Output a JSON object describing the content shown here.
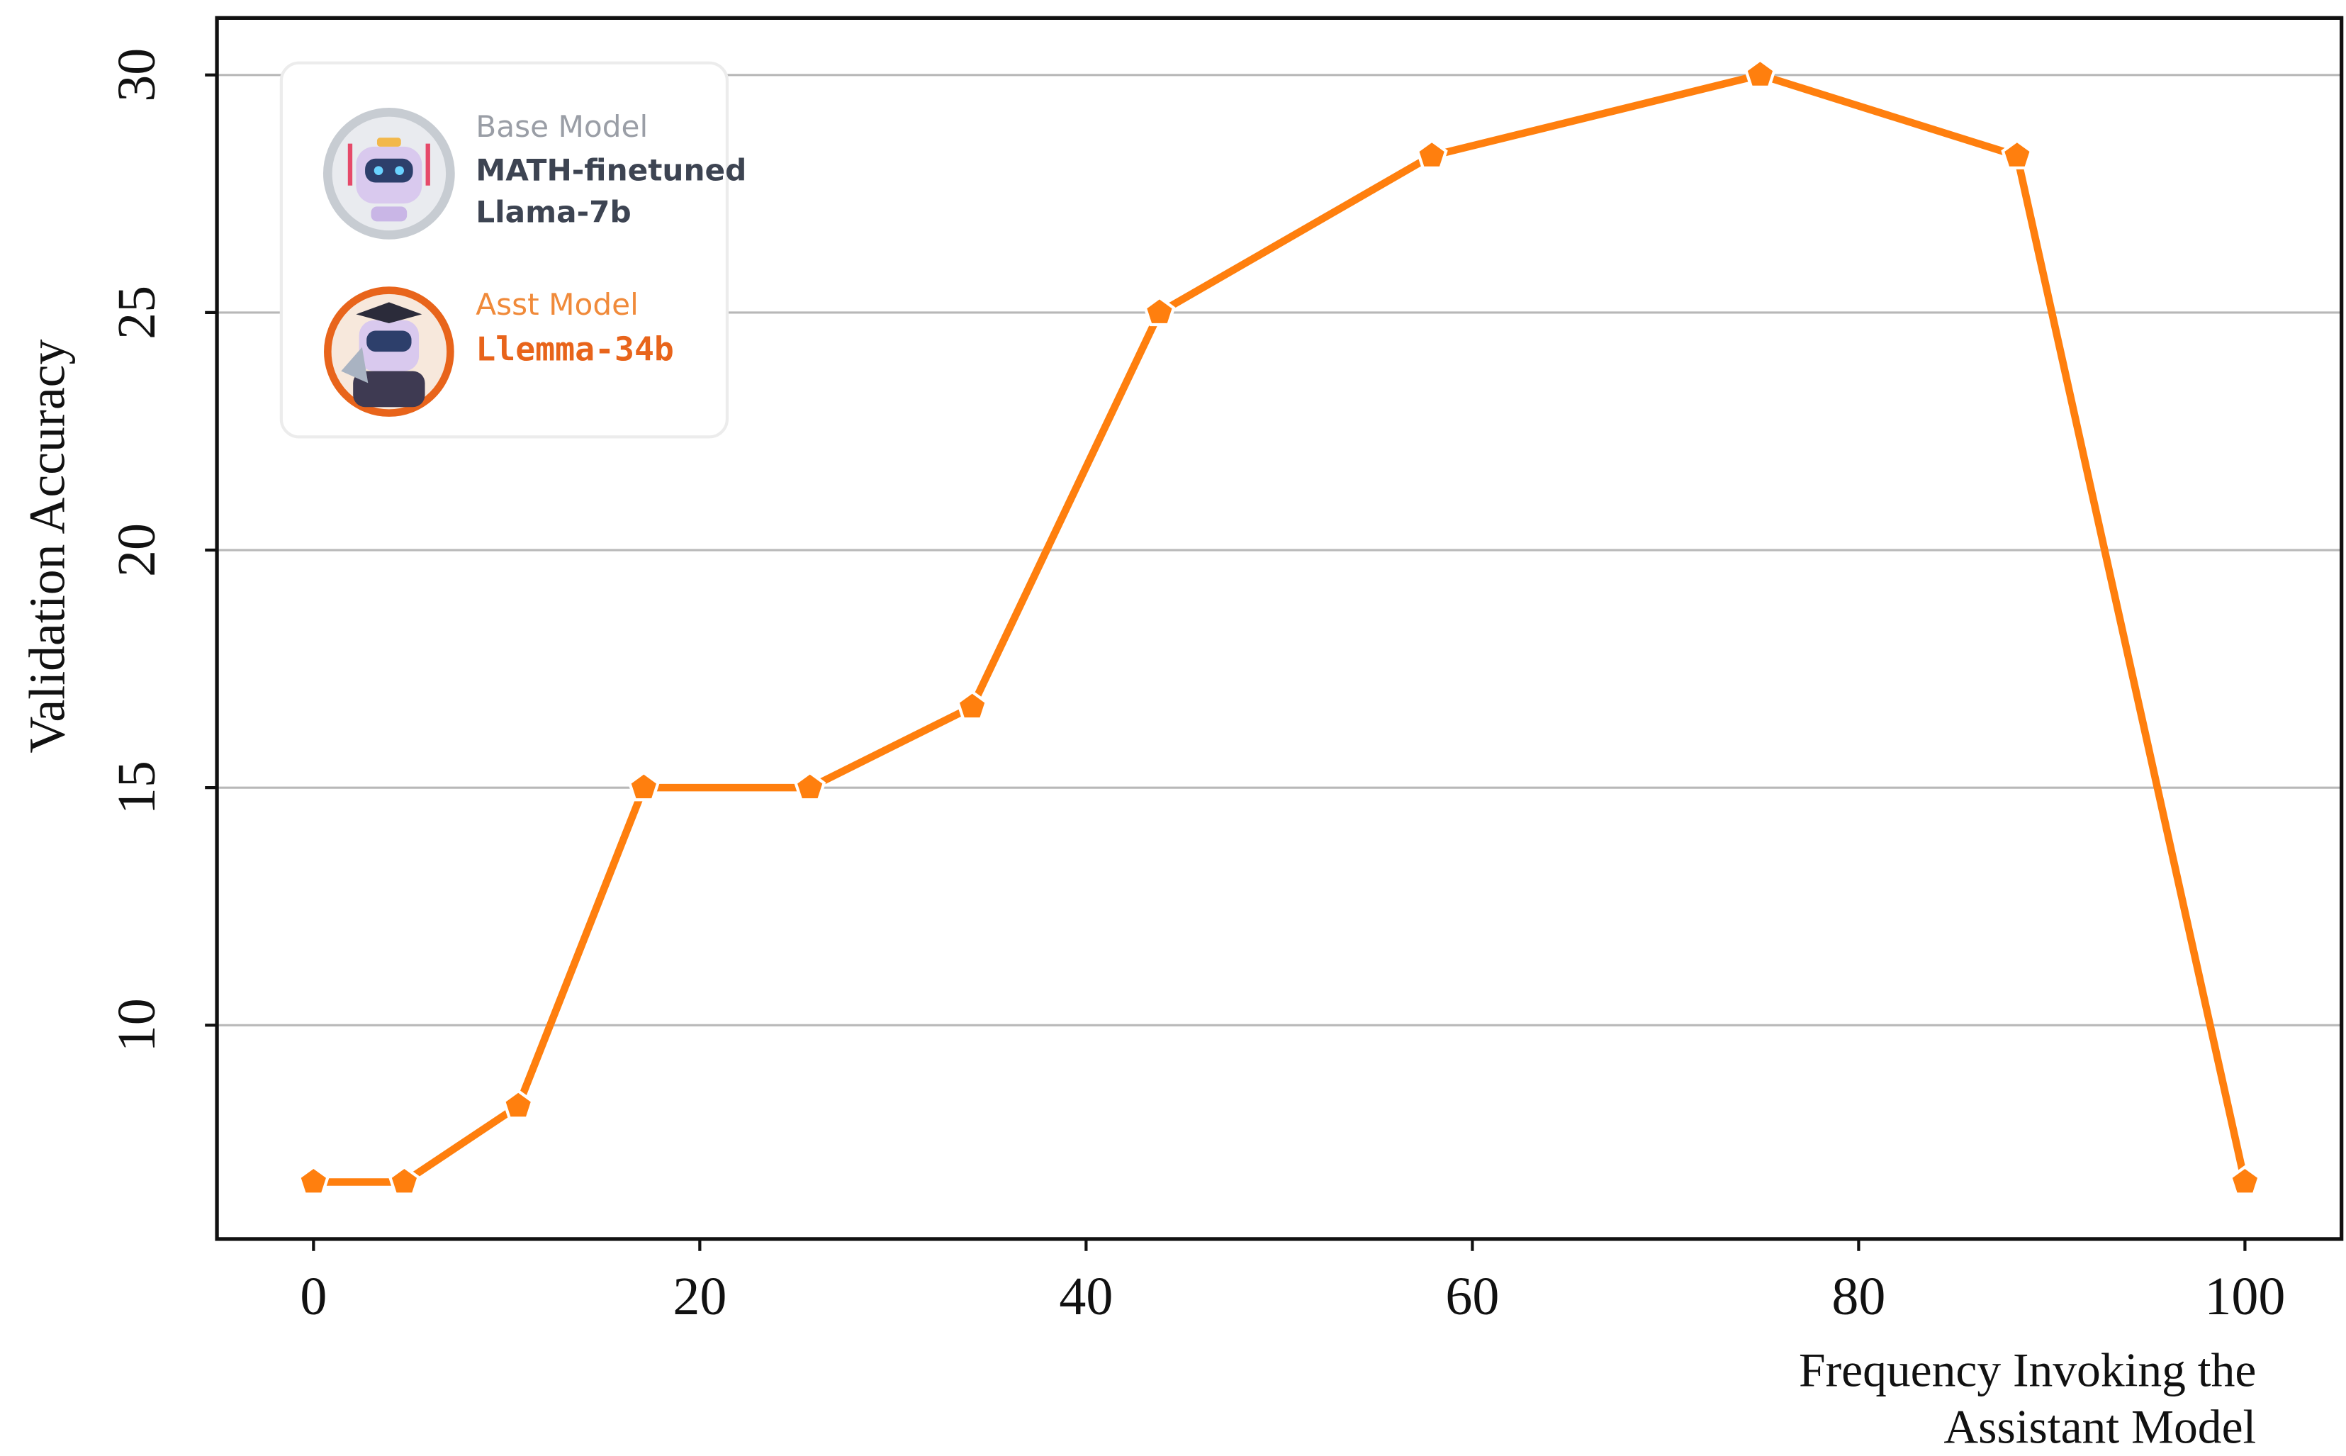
{
  "chart_data": {
    "type": "line",
    "ylabel": "Validation Accuracy",
    "xlabel": [
      "Frequency Invoking the",
      "Assistant Model"
    ],
    "x": [
      0,
      4.7,
      10.6,
      17.1,
      25.7,
      34.1,
      43.8,
      57.9,
      74.9,
      88.2,
      100
    ],
    "series": [
      {
        "color": "#ff7f0e",
        "values": [
          6.7,
          6.7,
          8.3,
          15,
          15,
          16.7,
          25,
          28.3,
          30,
          28.3,
          6.7
        ]
      }
    ],
    "xlim": [
      -5,
      105
    ],
    "ylim": [
      5.5,
      31.2
    ],
    "xticks": [
      0,
      20,
      40,
      60,
      80,
      100
    ],
    "yticks": [
      10,
      15,
      20,
      25,
      30
    ],
    "grid": true,
    "legend_box": {
      "base": {
        "role": "Base Model",
        "name": [
          "MATH-finetuned",
          "Llama-7b"
        ]
      },
      "assistant": {
        "role": "Asst Model",
        "name": "Llemma-34b"
      }
    }
  }
}
